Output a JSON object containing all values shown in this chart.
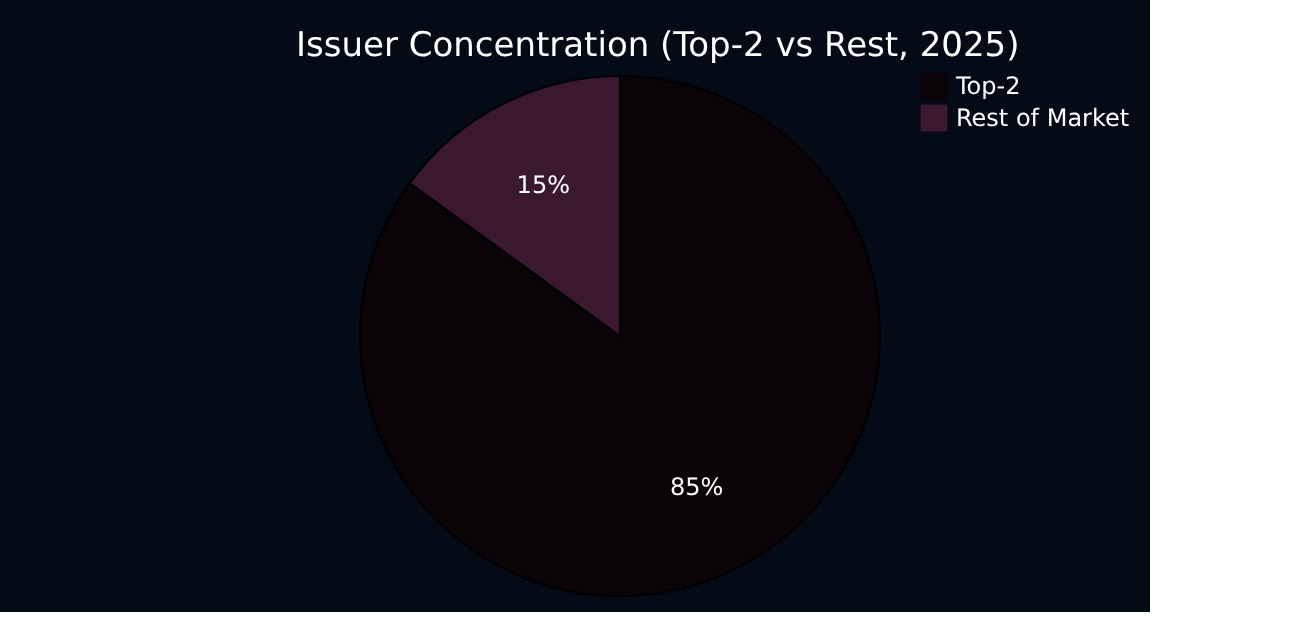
{
  "chart_data": {
    "type": "pie",
    "title": "Issuer Concentration (Top-2 vs Rest, 2025)",
    "categories": [
      "Top-2",
      "Rest of Market"
    ],
    "values": [
      85,
      15
    ],
    "value_labels": [
      "85%",
      "15%"
    ],
    "colors": [
      "#0a0308",
      "#3a1830"
    ],
    "legend": "right"
  }
}
